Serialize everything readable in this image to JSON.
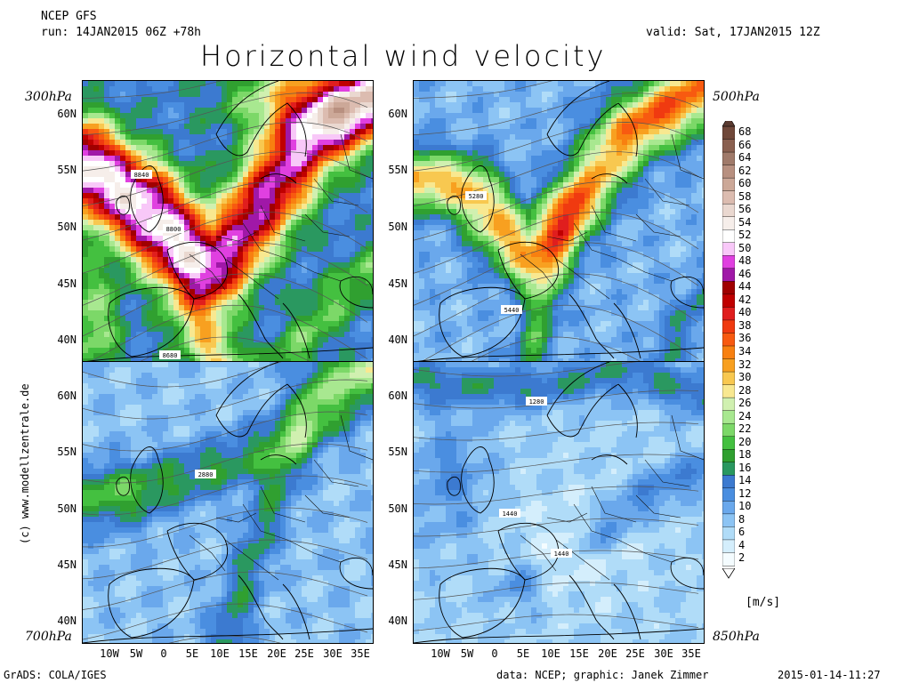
{
  "header": {
    "model": "NCEP GFS",
    "run": "run: 14JAN2015 06Z +78h",
    "valid": "valid: Sat, 17JAN2015 12Z",
    "title": "Horizontal wind velocity"
  },
  "levels": {
    "tl": "300hPa",
    "tr": "500hPa",
    "bl": "700hPa",
    "br": "850hPa"
  },
  "contour_labels": {
    "tl": [
      "8840",
      "8800",
      "8680"
    ],
    "tr": [
      "5280",
      "5440"
    ],
    "bl": [
      "2880"
    ],
    "br": [
      "1280",
      "1440",
      "1440"
    ]
  },
  "lat_ticks": [
    "60N",
    "55N",
    "50N",
    "45N",
    "40N"
  ],
  "lon_ticks": [
    "10W",
    "5W",
    "0",
    "5E",
    "10E",
    "15E",
    "20E",
    "25E",
    "30E",
    "35E"
  ],
  "colorbar": {
    "unit": "[m/s]",
    "labels": [
      "68",
      "66",
      "64",
      "62",
      "60",
      "58",
      "56",
      "54",
      "52",
      "50",
      "48",
      "46",
      "44",
      "42",
      "40",
      "38",
      "36",
      "34",
      "32",
      "30",
      "28",
      "26",
      "24",
      "22",
      "20",
      "18",
      "16",
      "14",
      "12",
      "10",
      "8",
      "6",
      "4",
      "2"
    ],
    "colors": [
      "#70483a",
      "#8a6050",
      "#a07a6a",
      "#b89080",
      "#cca898",
      "#dcbcb0",
      "#ead8d0",
      "#f6eeea",
      "#ffffff",
      "#f8c8f8",
      "#e040e0",
      "#a018a8",
      "#a00000",
      "#c00000",
      "#e01e1e",
      "#f03a10",
      "#f85a10",
      "#f88010",
      "#f8a020",
      "#f8c850",
      "#f8e890",
      "#d0f0b0",
      "#a8e890",
      "#7cd868",
      "#44c040",
      "#30a030",
      "#2a9860",
      "#3c7ad0",
      "#4a8ee0",
      "#6aa8ec",
      "#8cc4f4",
      "#b0dcf8",
      "#d4eefc",
      "#f4fcff"
    ]
  },
  "footer": {
    "left": "GrADS: COLA/IGES",
    "center": "data: NCEP; graphic: Janek Zimmer",
    "right": "2015-01-14-11:27"
  },
  "credit": "(c) www.modellzentrale.de"
}
